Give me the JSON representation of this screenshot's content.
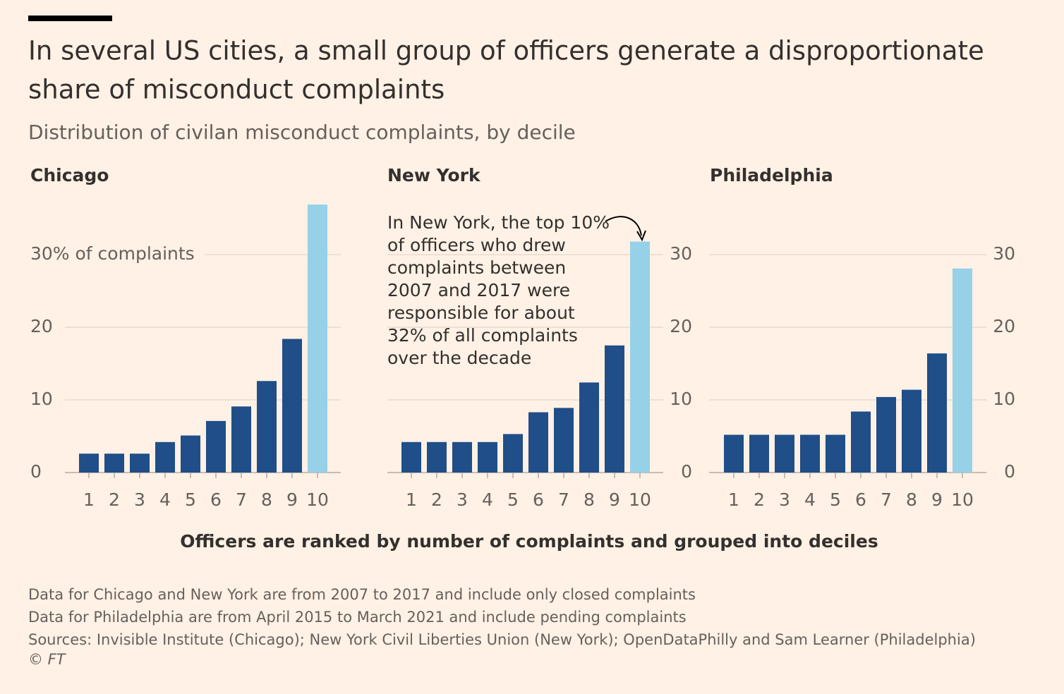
{
  "title": [
    "In several US cities, a small group of officers generate a disproportionate",
    "share of misconduct complaints"
  ],
  "subtitle": "Distribution of civilan misconduct complaints, by decile",
  "xlabel": "Officers are ranked by number of complaints and grouped into deciles",
  "notes": [
    "Data for Chicago and New York are from 2007 to 2017 and include only closed complaints",
    "Data for Philadelphia are from April 2015 to March 2021 and include pending complaints",
    "Sources: Invisible Institute (Chicago); New York Civil Liberties Union (New York); OpenDataPhilly and Sam Learner (Philadelphia)",
    "© FT"
  ],
  "chart_data": [
    {
      "type": "bar",
      "title": "Chicago",
      "categories": [
        "1",
        "2",
        "3",
        "4",
        "5",
        "6",
        "7",
        "8",
        "9",
        "10"
      ],
      "values": [
        2.6,
        2.6,
        2.6,
        4.2,
        5.1,
        7.1,
        9.1,
        12.6,
        18.4,
        36.9
      ],
      "colors": [
        "#1f4e88",
        "#1f4e88",
        "#1f4e88",
        "#1f4e88",
        "#1f4e88",
        "#1f4e88",
        "#1f4e88",
        "#1f4e88",
        "#1f4e88",
        "#96d1e8"
      ],
      "ylim": [
        0,
        37
      ],
      "yticks": [
        0,
        10,
        20,
        {
          "value": 30,
          "label": "30% of complaints"
        }
      ],
      "ytick_side": "left",
      "grid": true
    },
    {
      "type": "bar",
      "title": "New York",
      "categories": [
        "1",
        "2",
        "3",
        "4",
        "5",
        "6",
        "7",
        "8",
        "9",
        "10"
      ],
      "values": [
        4.2,
        4.2,
        4.2,
        4.2,
        5.3,
        8.3,
        8.9,
        12.4,
        17.5,
        31.8
      ],
      "colors": [
        "#1f4e88",
        "#1f4e88",
        "#1f4e88",
        "#1f4e88",
        "#1f4e88",
        "#1f4e88",
        "#1f4e88",
        "#1f4e88",
        "#1f4e88",
        "#96d1e8"
      ],
      "ylim": [
        0,
        37
      ],
      "yticks": [
        0,
        10,
        20,
        30
      ],
      "ytick_side": "right",
      "grid": true,
      "annotation": [
        "In New York, the top 10%",
        "of officers who drew",
        "complaints between",
        "2007 and 2017 were",
        "responsible for about",
        "32% of all complaints",
        "over the decade"
      ]
    },
    {
      "type": "bar",
      "title": "Philadelphia",
      "categories": [
        "1",
        "2",
        "3",
        "4",
        "5",
        "6",
        "7",
        "8",
        "9",
        "10"
      ],
      "values": [
        5.2,
        5.2,
        5.2,
        5.2,
        5.2,
        8.4,
        10.4,
        11.4,
        16.4,
        28.1
      ],
      "colors": [
        "#1f4e88",
        "#1f4e88",
        "#1f4e88",
        "#1f4e88",
        "#1f4e88",
        "#1f4e88",
        "#1f4e88",
        "#1f4e88",
        "#1f4e88",
        "#96d1e8"
      ],
      "ylim": [
        0,
        37
      ],
      "yticks": [
        0,
        10,
        20,
        30
      ],
      "ytick_side": "right",
      "grid": true
    }
  ]
}
